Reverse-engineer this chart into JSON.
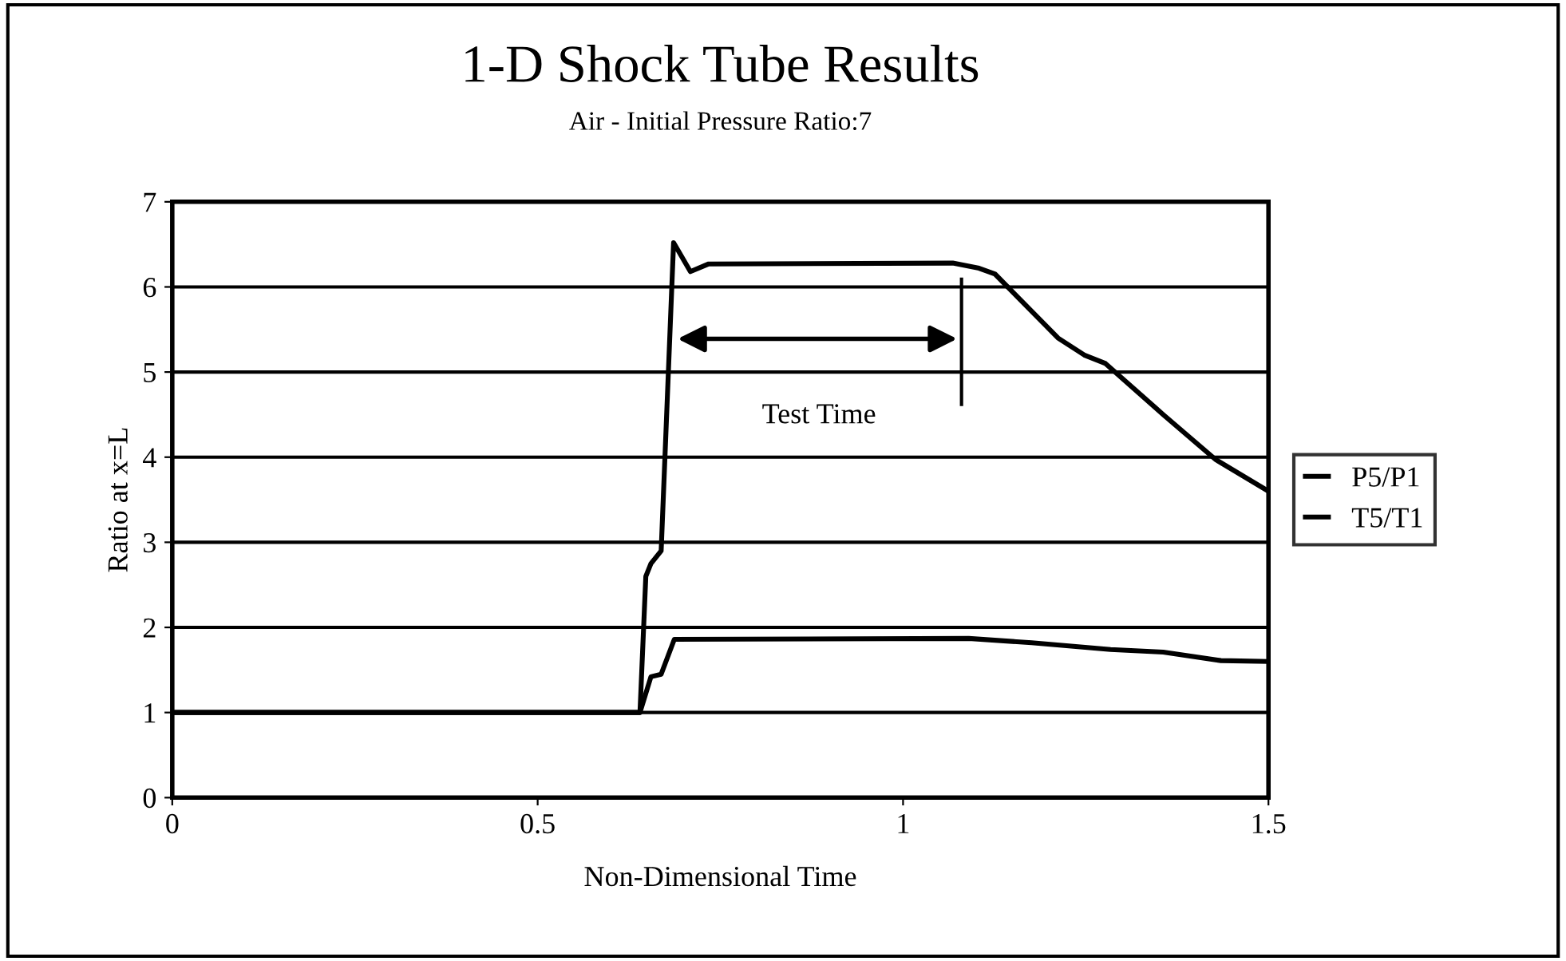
{
  "chart_data": {
    "type": "line",
    "title": "1-D Shock Tube Results",
    "subtitle": "Air - Initial Pressure Ratio:7",
    "xlabel": "Non-Dimensional Time",
    "ylabel": "Ratio at x=L",
    "series": [
      {
        "name": "P5/P1",
        "color": "#000000",
        "x": [
          0,
          0.64,
          0.648,
          0.655,
          0.669,
          0.686,
          0.709,
          0.734,
          1.068,
          1.104,
          1.126,
          1.212,
          1.248,
          1.277,
          1.356,
          1.428,
          1.5
        ],
        "values": [
          1,
          1,
          2.6,
          2.75,
          2.9,
          6.52,
          6.18,
          6.27,
          6.28,
          6.22,
          6.15,
          5.4,
          5.2,
          5.1,
          4.5,
          3.97,
          3.6
        ]
      },
      {
        "name": "T5/T1",
        "color": "#000000",
        "x": [
          0,
          0.64,
          0.655,
          0.669,
          0.687,
          1.09,
          1.176,
          1.284,
          1.356,
          1.435,
          1.5
        ],
        "values": [
          1,
          1,
          1.42,
          1.45,
          1.86,
          1.87,
          1.82,
          1.74,
          1.71,
          1.61,
          1.6
        ]
      }
    ],
    "xlim": [
      0,
      1.5
    ],
    "xticks": [
      0,
      0.5,
      1,
      1.5
    ],
    "ylim": [
      0,
      7
    ],
    "yticks": [
      0,
      1,
      2,
      3,
      4,
      5,
      6,
      7
    ],
    "annotations": [
      "Test Time"
    ],
    "grid": "y",
    "legend": "right",
    "line_style": "solid",
    "marker": "none"
  }
}
